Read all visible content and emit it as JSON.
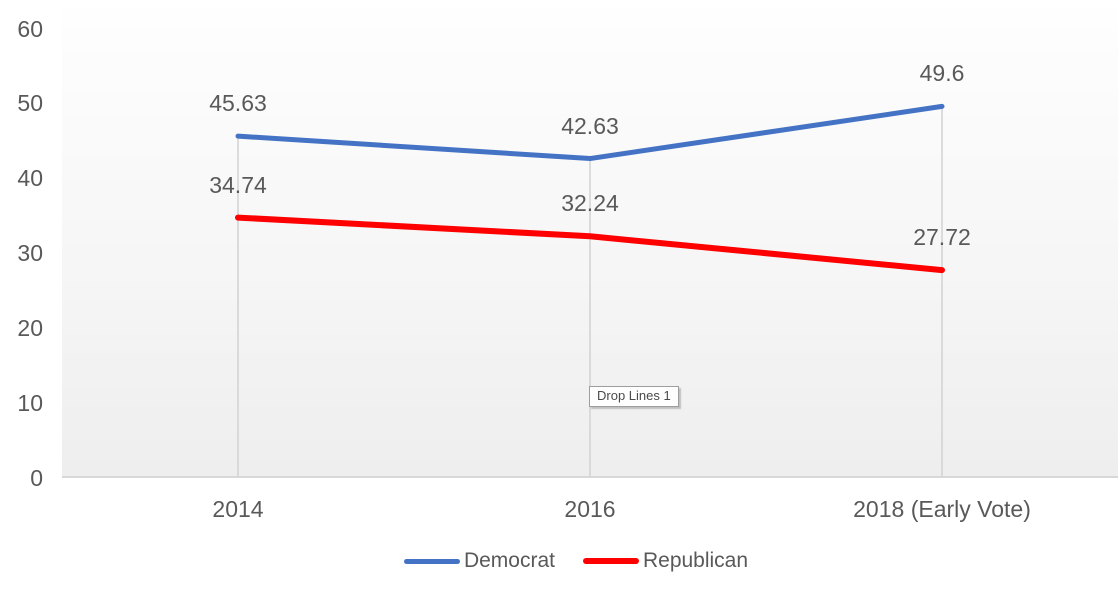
{
  "chart_data": {
    "type": "line",
    "title": "",
    "xlabel": "",
    "ylabel": "",
    "categories": [
      "2014",
      "2016",
      "2018 (Early Vote)"
    ],
    "series": [
      {
        "name": "Democrat",
        "color": "#4472C4",
        "stroke_width": 5,
        "values": [
          45.63,
          42.63,
          49.6
        ],
        "labels": [
          "45.63",
          "42.63",
          "49.6"
        ]
      },
      {
        "name": "Republican",
        "color": "#FF0000",
        "stroke_width": 6,
        "values": [
          34.74,
          32.24,
          27.72
        ],
        "labels": [
          "34.74",
          "32.24",
          "27.72"
        ]
      }
    ],
    "ylim": [
      0,
      60
    ],
    "yticks": [
      0,
      10,
      20,
      30,
      40,
      50,
      60
    ],
    "grid": false,
    "legend_position": "bottom",
    "drop_lines": true,
    "drop_line_color": "#d2d2d2",
    "axis_line_color": "#d8d8d8",
    "label_color": "#595959",
    "plot_background": "gradient-white-to-light-gray"
  },
  "tooltip": {
    "text": "Drop Lines 1"
  }
}
